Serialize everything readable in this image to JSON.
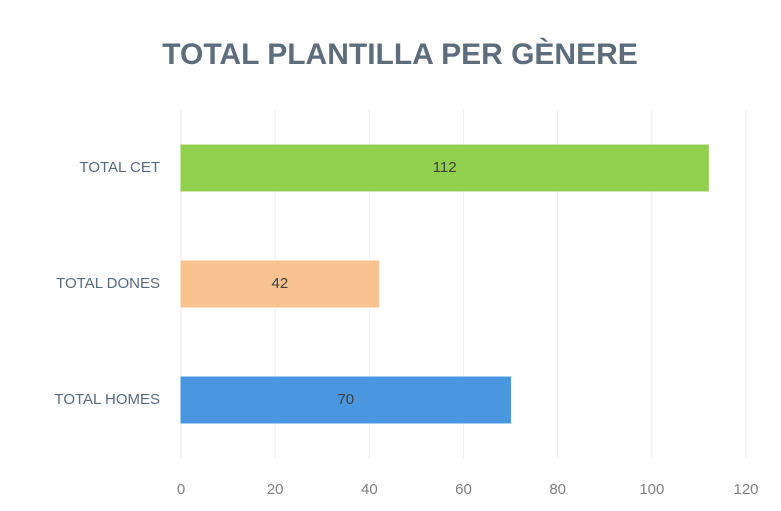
{
  "chart_data": {
    "type": "bar",
    "orientation": "horizontal",
    "title": "TOTAL PLANTILLA PER GÈNERE",
    "categories": [
      "TOTAL CET",
      "TOTAL DONES",
      "TOTAL HOMES"
    ],
    "values": [
      112,
      42,
      70
    ],
    "colors": [
      "#92d050",
      "#f9c38f",
      "#4a97e0"
    ],
    "xlim": [
      0,
      120
    ],
    "xticks": [
      0,
      20,
      40,
      60,
      80,
      100,
      120
    ],
    "grid": true
  }
}
